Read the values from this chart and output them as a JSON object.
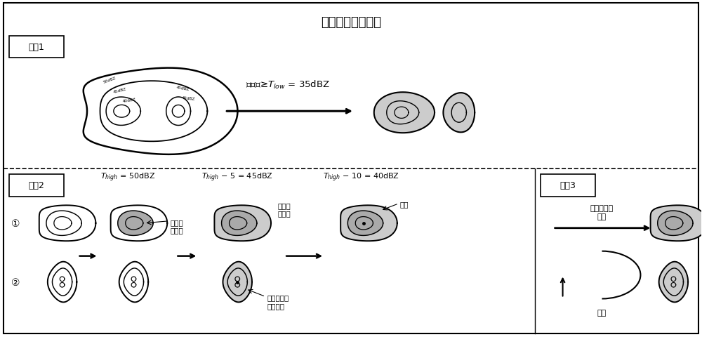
{
  "title": "对流单体识别算法",
  "step1_label": "步骤1",
  "step2_label": "步骤2",
  "step3_label": "步骤3",
  "step1_arrow_text": "反射率≥$T_{low}$ = 35dBZ",
  "step2_t1": "$T_{high}$ = 50dBZ",
  "step2_t2": "$T_{high}$ − 5 = 45dBZ",
  "step2_t3": "$T_{high}$ − 10 = 40dBZ",
  "label_core1": "对流单\n体核心",
  "label_core2": "对流单\n体核心",
  "label_middle": "中壳",
  "label_core_mid": "对流单体核\n心和中壳",
  "step3_morph": "数学形态学\n膨胀",
  "step3_iter": "迭代",
  "bg_color": "#ffffff",
  "gray_light": "#cccccc",
  "gray_mid": "#aaaaaa"
}
